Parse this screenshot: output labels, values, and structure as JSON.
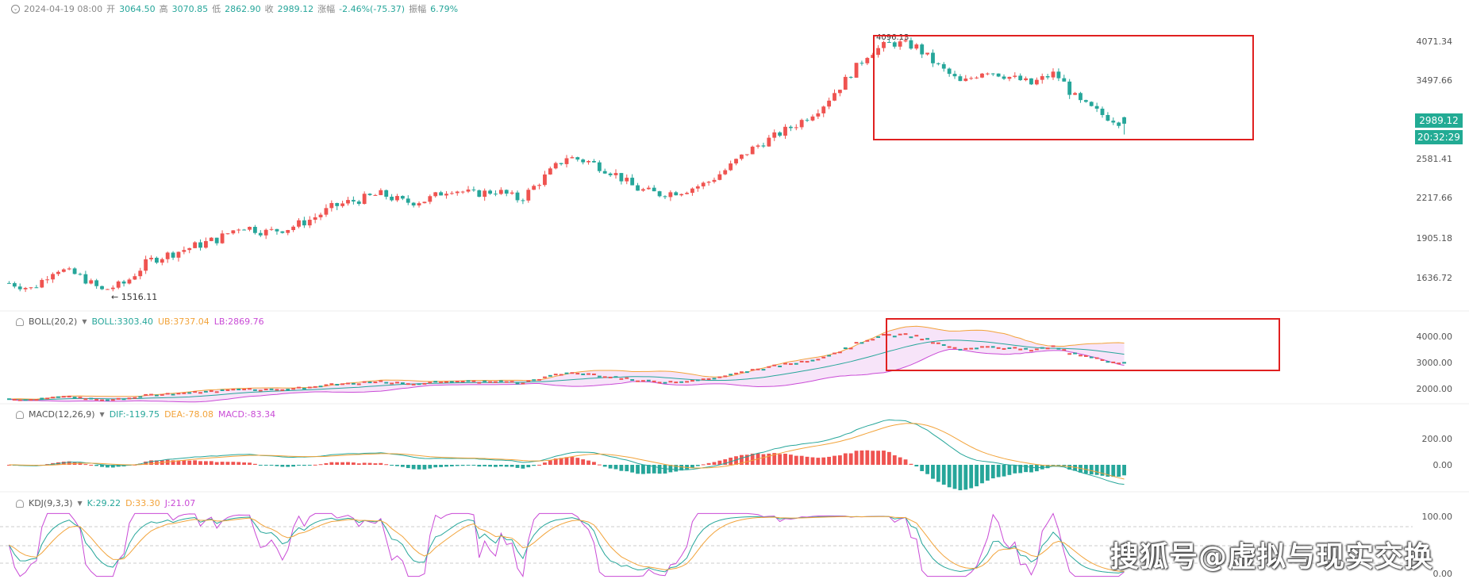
{
  "header": {
    "datetime": "2024-04-19 08:00",
    "open_label": "开",
    "open": "3064.50",
    "high_label": "高",
    "high": "3070.85",
    "low_label": "低",
    "low": "2862.90",
    "close_label": "收",
    "close": "2989.12",
    "change_label": "涨幅",
    "change": "-2.46%(-75.37)",
    "amplitude_label": "振幅",
    "amplitude": "6.79%"
  },
  "price_axis": {
    "ticks": [
      "4071.34",
      "3497.66",
      "2581.41",
      "2217.66",
      "1905.18",
      "1636.72"
    ],
    "last_price": "2989.12",
    "countdown": "20:32:29"
  },
  "annotations": {
    "max_label": "4096.13",
    "min_label": "1516.11"
  },
  "boll": {
    "name": "BOLL(20,2)",
    "boll": "BOLL:3303.40",
    "ub": "UB:3737.04",
    "lb": "LB:2869.76",
    "ticks": [
      "4000.00",
      "3000.00",
      "2000.00"
    ]
  },
  "macd": {
    "name": "MACD(12,26,9)",
    "dif": "DIF:-119.75",
    "dea": "DEA:-78.08",
    "macd": "MACD:-83.34",
    "ticks": [
      "200.00",
      "0.00"
    ]
  },
  "kdj": {
    "name": "KDJ(9,3,3)",
    "k": "K:29.22",
    "d": "D:33.30",
    "j": "J:21.07",
    "ticks": [
      "100.00",
      "0.00"
    ]
  },
  "watermark": "搜狐号@虚拟与现实交换",
  "colors": {
    "up": "#ef5350",
    "down": "#26a69a",
    "boll_mid": "#26a69a",
    "boll_ub": "#f2a33a",
    "boll_lb": "#c94bd6",
    "dif": "#26a69a",
    "dea": "#f2a33a",
    "k": "#26a69a",
    "d": "#f2a33a",
    "j": "#c94bd6",
    "highlight": "#e02020"
  },
  "chart_data": {
    "type": "candlestick",
    "interval_note": "daily candles, last candle 2024-04-19",
    "last_candle": {
      "open": 3064.5,
      "high": 3070.85,
      "low": 2862.9,
      "close": 2989.12
    },
    "approx_close_path": [
      1600,
      1560,
      1700,
      1650,
      1550,
      1600,
      1750,
      1800,
      1850,
      1900,
      2000,
      1950,
      1980,
      2050,
      2150,
      2200,
      2250,
      2180,
      2200,
      2300,
      2250,
      2280,
      2200,
      2400,
      2600,
      2550,
      2450,
      2300,
      2250,
      2280,
      2350,
      2500,
      2700,
      2850,
      3000,
      3200,
      3500,
      3900,
      4050,
      4000,
      3700,
      3450,
      3650,
      3550,
      3450,
      3600,
      3250,
      3100,
      2990
    ],
    "highlight_box": "top-right region covering the final ~45 candles (both in price panel and BOLL panel)"
  }
}
